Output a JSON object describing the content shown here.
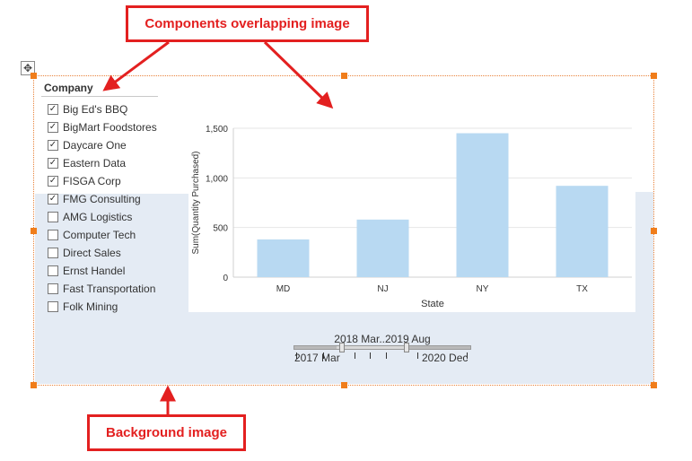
{
  "callouts": {
    "top": "Components overlapping image",
    "bottom": "Background image"
  },
  "move_icon": "✥",
  "company_filter": {
    "title": "Company",
    "items": [
      {
        "label": "Big Ed's BBQ",
        "checked": true,
        "mark": "✓"
      },
      {
        "label": "BigMart Foodstores",
        "checked": true,
        "mark": "✓"
      },
      {
        "label": "Daycare One",
        "checked": true,
        "mark": "✓"
      },
      {
        "label": "Eastern Data",
        "checked": true,
        "mark": "✓"
      },
      {
        "label": "FISGA Corp",
        "checked": true,
        "mark": "✓"
      },
      {
        "label": "FMG Consulting",
        "checked": true,
        "mark": "✓"
      },
      {
        "label": "AMG Logistics",
        "checked": false,
        "mark": ""
      },
      {
        "label": "Computer Tech",
        "checked": false,
        "mark": ""
      },
      {
        "label": "Direct Sales",
        "checked": false,
        "mark": ""
      },
      {
        "label": "Ernst Handel",
        "checked": false,
        "mark": ""
      },
      {
        "label": "Fast Transportation",
        "checked": false,
        "mark": ""
      },
      {
        "label": "Folk Mining",
        "checked": false,
        "mark": ""
      }
    ]
  },
  "chart_data": {
    "type": "bar",
    "categories": [
      "MD",
      "NJ",
      "NY",
      "TX"
    ],
    "values": [
      380,
      580,
      1450,
      920
    ],
    "xlabel": "State",
    "ylabel": "Sum(Quantity Purchased)",
    "ylim": [
      0,
      1500
    ],
    "yticks": [
      0,
      500,
      1000,
      1500
    ],
    "ytick_labels": [
      "0",
      "500",
      "1,000",
      "1,500"
    ],
    "bar_color": "#b8d9f2",
    "grid": true
  },
  "date_slider": {
    "range_label": "2018 Mar..2019 Aug",
    "min_label": "2017 Mar",
    "max_label": "2020 Dec"
  },
  "colors": {
    "callout": "#e32020",
    "handle": "#f07d1a",
    "background_image": "#e4ebf4"
  }
}
